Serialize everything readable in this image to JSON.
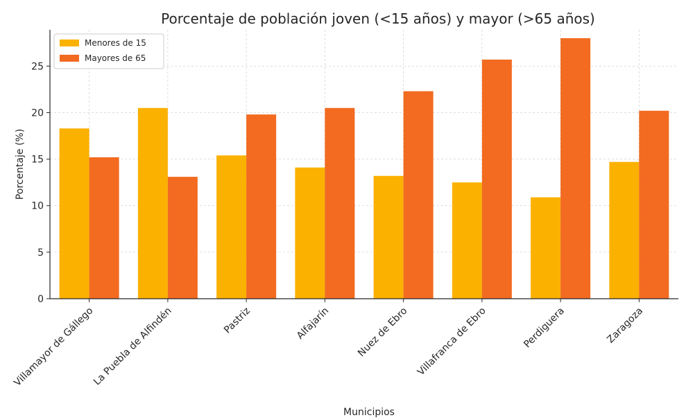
{
  "chart_data": {
    "type": "bar",
    "title": "Porcentaje de población joven (<15 años) y mayor (>65 años)",
    "xlabel": "Municipios",
    "ylabel": "Porcentaje (%)",
    "ylim": [
      0,
      28.9
    ],
    "yticks": [
      0,
      5,
      10,
      15,
      20,
      25
    ],
    "grid": true,
    "legend_position": "top-left",
    "categories": [
      "Villamayor de Gállego",
      "La Puebla de Alfindén",
      "Pastriz",
      "Alfajarín",
      "Nuez de Ebro",
      "Villafranca de Ebro",
      "Perdiguera",
      "Zaragoza"
    ],
    "series": [
      {
        "name": "Menores de 15",
        "color": "#fbb100",
        "values": [
          18.3,
          20.5,
          15.4,
          14.1,
          13.2,
          12.5,
          10.9,
          14.7
        ]
      },
      {
        "name": "Mayores de 65",
        "color": "#f26b21",
        "values": [
          15.2,
          13.1,
          19.8,
          20.5,
          22.3,
          25.7,
          28.0,
          20.2
        ]
      }
    ]
  }
}
